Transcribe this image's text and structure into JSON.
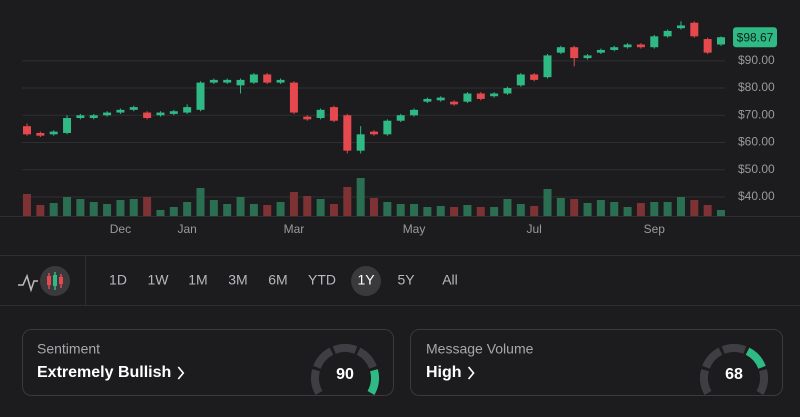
{
  "chart_data": {
    "type": "candlestick",
    "categories": [
      null,
      null,
      null,
      null,
      null,
      null,
      null,
      "Dec",
      null,
      null,
      null,
      null,
      "Jan",
      null,
      null,
      null,
      null,
      null,
      null,
      null,
      "Mar",
      null,
      null,
      null,
      null,
      null,
      null,
      null,
      null,
      "May",
      null,
      null,
      null,
      null,
      null,
      null,
      null,
      null,
      "Jul",
      null,
      null,
      null,
      null,
      null,
      null,
      null,
      null,
      "Sep",
      null,
      null,
      null,
      null,
      null
    ],
    "open": [
      66,
      63.5,
      63,
      63.5,
      69,
      69,
      70,
      71,
      72,
      71,
      70,
      70.5,
      71,
      72,
      82,
      82,
      81,
      82,
      85,
      82,
      82,
      69.5,
      69,
      73,
      70,
      57,
      64,
      63,
      68,
      70,
      75,
      75.5,
      75,
      75,
      78,
      77,
      78,
      81,
      85,
      84,
      93,
      95,
      91,
      93,
      94,
      95,
      96,
      95,
      99,
      102,
      104,
      98,
      96
    ],
    "high": [
      67,
      64,
      64.5,
      70,
      70.5,
      70.5,
      71.5,
      72.5,
      73.5,
      71.5,
      71.5,
      72,
      74,
      82.5,
      83.5,
      83.5,
      83.5,
      85.5,
      85.5,
      83.5,
      82.5,
      70,
      72.5,
      73.5,
      70.5,
      66,
      64.5,
      68.5,
      70.5,
      72.5,
      76.5,
      77,
      75.5,
      78.5,
      78.5,
      78.5,
      80.5,
      85.5,
      85.5,
      92.5,
      95.5,
      95.5,
      92.5,
      94.5,
      95.5,
      96.5,
      96.5,
      99.5,
      101.5,
      104.5,
      104.5,
      98.5,
      99
    ],
    "low": [
      62.5,
      62,
      62.5,
      63,
      68.5,
      68.5,
      69.5,
      70.5,
      71.5,
      68.5,
      69.5,
      70,
      70.5,
      71.5,
      81.5,
      81.5,
      78,
      81.5,
      81.5,
      81.5,
      70.5,
      68,
      68.5,
      67.5,
      56,
      56,
      62.5,
      62.5,
      67.5,
      69.5,
      74.5,
      75,
      73.5,
      74.5,
      75.5,
      76.5,
      77.5,
      80.5,
      82.5,
      83.5,
      92.5,
      88,
      90.5,
      92.5,
      93.5,
      94.5,
      94.5,
      94.5,
      98.5,
      101.5,
      98.5,
      92.5,
      95.5
    ],
    "close": [
      63,
      62.5,
      64,
      69,
      70,
      70,
      71,
      72,
      73,
      69,
      71,
      71.5,
      73,
      82,
      83,
      83,
      83,
      85,
      82,
      83,
      71,
      68.5,
      72,
      68,
      57,
      63,
      63,
      68,
      70,
      72,
      76,
      76.5,
      74,
      78,
      76,
      78,
      80,
      85,
      83,
      92,
      95,
      91,
      92,
      94,
      95,
      96,
      95,
      99,
      101,
      103,
      99,
      93,
      98.67
    ],
    "volume": [
      22,
      11,
      13,
      19,
      17,
      14,
      12,
      16,
      17,
      19,
      6,
      9,
      14,
      28,
      16,
      12,
      19,
      12,
      11,
      14,
      24,
      20,
      17,
      12,
      29,
      38,
      18,
      14,
      12,
      12,
      9,
      10,
      9,
      11,
      9,
      9,
      17,
      12,
      10,
      27,
      18,
      17,
      13,
      16,
      14,
      9,
      13,
      14,
      14,
      19,
      16,
      11,
      6
    ],
    "up_color": "#2fb985",
    "down_color": "#e5484d",
    "up_volume_color": "#2b6f52",
    "down_volume_color": "#7e3234",
    "ylim": [
      33,
      105
    ],
    "yticks": [
      {
        "value": 90,
        "label": "$90.00"
      },
      {
        "value": 80,
        "label": "$80.00"
      },
      {
        "value": 70,
        "label": "$70.00"
      },
      {
        "value": 60,
        "label": "$60.00"
      },
      {
        "value": 50,
        "label": "$50.00"
      },
      {
        "value": 40,
        "label": "$40.00"
      }
    ],
    "grid": true,
    "last_price_label": "$98.67"
  },
  "timeframes": [
    {
      "label": "1D"
    },
    {
      "label": "1W"
    },
    {
      "label": "1M"
    },
    {
      "label": "3M"
    },
    {
      "label": "6M"
    },
    {
      "label": "YTD"
    },
    {
      "label": "1Y",
      "selected": true
    },
    {
      "label": "5Y"
    },
    {
      "label": "All"
    }
  ],
  "cards": [
    {
      "title": "Sentiment",
      "value": "Extremely Bullish",
      "score": 90
    },
    {
      "title": "Message Volume",
      "value": "High",
      "score": 68
    }
  ]
}
